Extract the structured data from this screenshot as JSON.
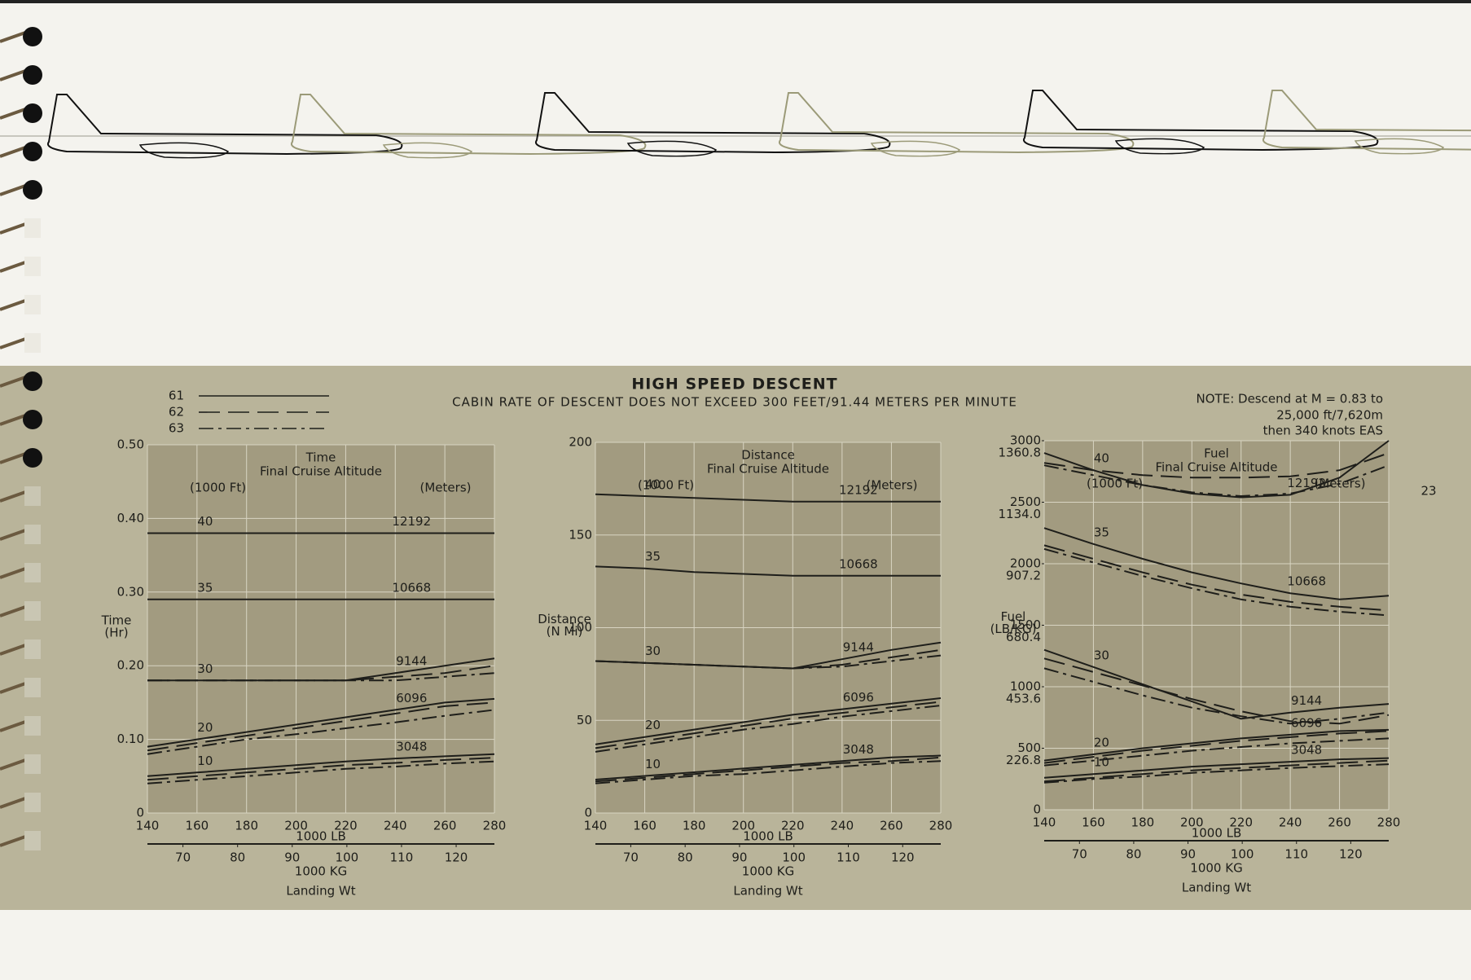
{
  "title": "HIGH SPEED DESCENT",
  "subtitle": "CABIN RATE OF DESCENT DOES NOT EXCEED 300 FEET/91.44 METERS PER MINUTE",
  "note": [
    "NOTE: Descend at M = 0.83 to",
    "25,000 ft/7,620m",
    "then 340 knots EAS"
  ],
  "page_number": "23",
  "legend": [
    {
      "name": "61",
      "dash": "solid"
    },
    {
      "name": "62",
      "dash": "dashed"
    },
    {
      "name": "63",
      "dash": "dash-dot"
    }
  ],
  "chart_data": [
    {
      "type": "line",
      "title": "Time",
      "subtitle": "Final Cruise Altitude",
      "left_unit": "(1000 Ft)",
      "right_unit": "(Meters)",
      "ylabel": [
        "Time",
        "(Hr)"
      ],
      "xlabel": "1000 LB",
      "x2label": "1000 KG",
      "footer": "Landing Wt",
      "x": [
        140,
        160,
        180,
        200,
        220,
        240,
        260,
        280
      ],
      "xlim": [
        140,
        280
      ],
      "xticks": [
        140,
        160,
        180,
        200,
        220,
        240,
        260,
        280
      ],
      "x2lim": [
        63.5,
        127.0
      ],
      "x2ticks": [
        70,
        80,
        90,
        100,
        110,
        120
      ],
      "ylim": [
        0,
        0.5
      ],
      "yticks": [
        0,
        {
          "value": 0.1,
          "label": "0.10"
        },
        {
          "value": 0.2,
          "label": "0.20"
        },
        {
          "value": 0.3,
          "label": "0.30"
        },
        {
          "value": 0.4,
          "label": "0.40"
        },
        {
          "value": 0.5,
          "label": "0.50"
        }
      ],
      "grid": true,
      "series": [
        {
          "name": "40",
          "meters": "12192",
          "lines": [
            {
              "model": "61",
              "values": [
                0.38,
                0.38,
                0.38,
                0.38,
                0.38,
                0.38,
                0.38,
                0.38
              ]
            }
          ]
        },
        {
          "name": "35",
          "meters": "10668",
          "lines": [
            {
              "model": "61",
              "values": [
                0.29,
                0.29,
                0.29,
                0.29,
                0.29,
                0.29,
                0.29,
                0.29
              ]
            }
          ]
        },
        {
          "name": "30",
          "meters": "9144",
          "lines": [
            {
              "model": "61",
              "values": [
                0.18,
                0.18,
                0.18,
                0.18,
                0.18,
                0.19,
                0.2,
                0.21
              ]
            },
            {
              "model": "62",
              "values": [
                0.18,
                0.18,
                0.18,
                0.18,
                0.18,
                0.185,
                0.19,
                0.2
              ]
            },
            {
              "model": "63",
              "values": [
                0.18,
                0.18,
                0.18,
                0.18,
                0.18,
                0.18,
                0.185,
                0.19
              ]
            }
          ]
        },
        {
          "name": "20",
          "meters": "6096",
          "lines": [
            {
              "model": "61",
              "values": [
                0.09,
                0.1,
                0.11,
                0.12,
                0.13,
                0.14,
                0.15,
                0.155
              ]
            },
            {
              "model": "62",
              "values": [
                0.085,
                0.095,
                0.105,
                0.115,
                0.125,
                0.135,
                0.145,
                0.15
              ]
            },
            {
              "model": "63",
              "values": [
                0.08,
                0.09,
                0.1,
                0.107,
                0.115,
                0.123,
                0.132,
                0.14
              ]
            }
          ]
        },
        {
          "name": "10",
          "meters": "3048",
          "lines": [
            {
              "model": "61",
              "values": [
                0.05,
                0.055,
                0.06,
                0.065,
                0.07,
                0.074,
                0.077,
                0.08
              ]
            },
            {
              "model": "62",
              "values": [
                0.045,
                0.05,
                0.055,
                0.06,
                0.065,
                0.068,
                0.072,
                0.075
              ]
            },
            {
              "model": "63",
              "values": [
                0.04,
                0.045,
                0.05,
                0.055,
                0.06,
                0.063,
                0.067,
                0.07
              ]
            }
          ]
        }
      ]
    },
    {
      "type": "line",
      "title": "Distance",
      "subtitle": "Final Cruise Altitude",
      "left_unit": "(1000 Ft)",
      "right_unit": "(Meters)",
      "ylabel": [
        "Distance",
        "(N Mi)"
      ],
      "xlabel": "1000 LB",
      "x2label": "1000 KG",
      "footer": "Landing Wt",
      "x": [
        140,
        160,
        180,
        200,
        220,
        240,
        260,
        280
      ],
      "xlim": [
        140,
        280
      ],
      "xticks": [
        140,
        160,
        180,
        200,
        220,
        240,
        260,
        280
      ],
      "x2lim": [
        63.5,
        127.0
      ],
      "x2ticks": [
        70,
        80,
        90,
        100,
        110,
        120
      ],
      "ylim": [
        0,
        200
      ],
      "yticks": [
        0,
        50,
        100,
        150,
        200
      ],
      "grid": true,
      "series": [
        {
          "name": "40",
          "meters": "12192",
          "lines": [
            {
              "model": "61",
              "values": [
                172,
                171,
                170,
                169,
                168,
                168,
                168,
                168
              ]
            }
          ]
        },
        {
          "name": "35",
          "meters": "10668",
          "lines": [
            {
              "model": "61",
              "values": [
                133,
                132,
                130,
                129,
                128,
                128,
                128,
                128
              ]
            }
          ]
        },
        {
          "name": "30",
          "meters": "9144",
          "lines": [
            {
              "model": "61",
              "values": [
                82,
                81,
                80,
                79,
                78,
                83,
                88,
                92
              ]
            },
            {
              "model": "62",
              "values": [
                82,
                81,
                80,
                79,
                78,
                80,
                84,
                88
              ]
            },
            {
              "model": "63",
              "values": [
                82,
                81,
                80,
                79,
                78,
                79,
                82,
                85
              ]
            }
          ]
        },
        {
          "name": "20",
          "meters": "6096",
          "lines": [
            {
              "model": "61",
              "values": [
                37,
                41,
                45,
                49,
                53,
                56,
                59,
                62
              ]
            },
            {
              "model": "62",
              "values": [
                35,
                39,
                43,
                47,
                51,
                54,
                57,
                60
              ]
            },
            {
              "model": "63",
              "values": [
                33,
                37,
                41,
                45,
                48,
                52,
                55,
                58
              ]
            }
          ]
        },
        {
          "name": "10",
          "meters": "3048",
          "lines": [
            {
              "model": "61",
              "values": [
                18,
                20,
                22,
                24,
                26,
                28,
                30,
                31
              ]
            },
            {
              "model": "62",
              "values": [
                17,
                19,
                21,
                23,
                25,
                27,
                28,
                30
              ]
            },
            {
              "model": "63",
              "values": [
                16,
                18,
                20,
                21,
                23,
                25,
                27,
                28
              ]
            }
          ]
        }
      ]
    },
    {
      "type": "line",
      "title": "Fuel",
      "subtitle": "Final Cruise Altitude",
      "left_unit": "(1000 Ft)",
      "right_unit": "(Meters)",
      "ylabel": [
        "Fuel",
        "(LB/KG)"
      ],
      "xlabel": "1000 LB",
      "x2label": "1000 KG",
      "footer": "Landing Wt",
      "x": [
        140,
        160,
        180,
        200,
        220,
        240,
        260,
        280
      ],
      "xlim": [
        140,
        280
      ],
      "xticks": [
        140,
        160,
        180,
        200,
        220,
        240,
        260,
        280
      ],
      "x2lim": [
        63.5,
        127.0
      ],
      "x2ticks": [
        70,
        80,
        90,
        100,
        110,
        120
      ],
      "ylim": [
        0,
        3000
      ],
      "yticks": [
        0,
        500,
        1000,
        1500,
        2000,
        2500,
        3000
      ],
      "y2lim": [
        0,
        1360.8
      ],
      "y2ticks": [
        226.8,
        453.6,
        680.4,
        907.2,
        {
          "value": 1134,
          "label": "1134.0"
        },
        1360.8
      ],
      "grid": true,
      "series": [
        {
          "name": "40",
          "meters": "12192",
          "lines": [
            {
              "model": "61",
              "values": [
                2900,
                2760,
                2640,
                2570,
                2540,
                2560,
                2700,
                3000
              ]
            },
            {
              "model": "62",
              "values": [
                2820,
                2760,
                2720,
                2700,
                2700,
                2710,
                2760,
                2900
              ]
            },
            {
              "model": "63",
              "values": [
                2800,
                2720,
                2640,
                2580,
                2550,
                2570,
                2650,
                2800
              ]
            }
          ]
        },
        {
          "name": "35",
          "meters": "10668",
          "lines": [
            {
              "model": "61",
              "values": [
                2290,
                2160,
                2040,
                1930,
                1840,
                1760,
                1710,
                1740
              ]
            },
            {
              "model": "62",
              "values": [
                2150,
                2040,
                1930,
                1830,
                1750,
                1690,
                1650,
                1620
              ]
            },
            {
              "model": "63",
              "values": [
                2120,
                2010,
                1900,
                1800,
                1710,
                1650,
                1610,
                1580
              ]
            }
          ]
        },
        {
          "name": "30",
          "meters": "9144",
          "lines": [
            {
              "model": "61",
              "values": [
                1300,
                1160,
                1020,
                880,
                740,
                790,
                830,
                860
              ]
            },
            {
              "model": "62",
              "values": [
                1230,
                1120,
                1010,
                900,
                800,
                720,
                700,
                770
              ]
            },
            {
              "model": "63",
              "values": [
                1150,
                1040,
                930,
                830,
                760,
                700,
                740,
                790
              ]
            }
          ]
        },
        {
          "name": "20",
          "meters": "6096",
          "lines": [
            {
              "model": "61",
              "values": [
                400,
                450,
                500,
                540,
                580,
                610,
                640,
                650
              ]
            },
            {
              "model": "62",
              "values": [
                380,
                430,
                480,
                520,
                560,
                590,
                620,
                640
              ]
            },
            {
              "model": "63",
              "values": [
                360,
                400,
                440,
                480,
                510,
                540,
                560,
                580
              ]
            }
          ]
        },
        {
          "name": "10",
          "meters": "3048",
          "lines": [
            {
              "model": "61",
              "values": [
                260,
                290,
                320,
                350,
                370,
                390,
                410,
                420
              ]
            },
            {
              "model": "62",
              "values": [
                230,
                260,
                290,
                320,
                340,
                360,
                380,
                400
              ]
            },
            {
              "model": "63",
              "values": [
                220,
                250,
                270,
                300,
                320,
                340,
                355,
                370
              ]
            }
          ]
        }
      ]
    }
  ]
}
